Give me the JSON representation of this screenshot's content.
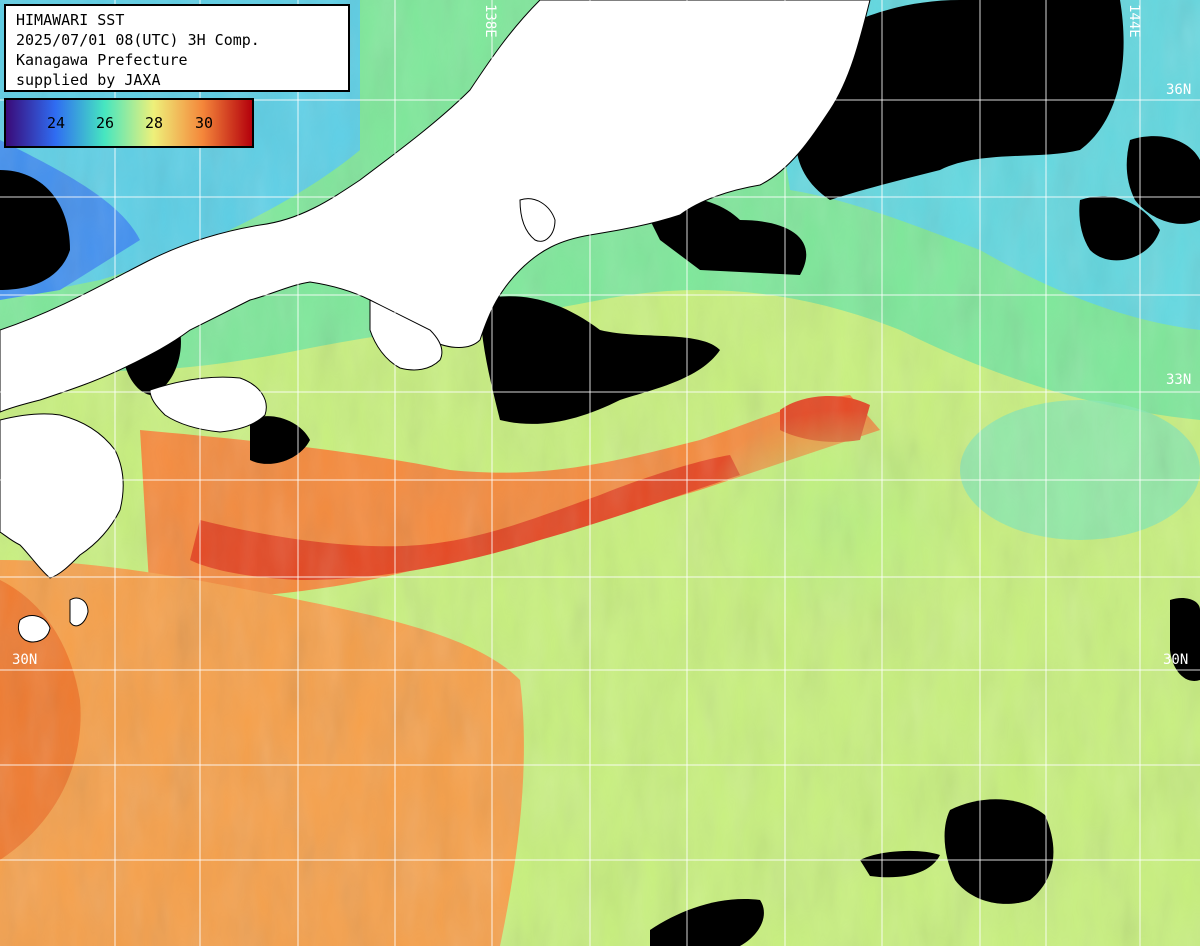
{
  "info": {
    "line1": "HIMAWARI SST",
    "line2": "2025/07/01 08(UTC) 3H Comp.",
    "line3": "Kanagawa Prefecture",
    "line4": "supplied by JAXA"
  },
  "legend": {
    "ticks": [
      "24",
      "26",
      "28",
      "30"
    ],
    "colors": [
      "#3a0a78",
      "#2f6cf2",
      "#46e6c0",
      "#eef07a",
      "#f4863a",
      "#b4000c"
    ]
  },
  "grid_labels": {
    "lat_36_right": "36N",
    "lat_33_right": "33N",
    "lat_30_left": "30N",
    "lat_30_right": "30N",
    "lon_138": "138E",
    "lon_144": "144E"
  },
  "colors": {
    "land": "#ffffff",
    "cloud": "#000000",
    "grid": "#ffffff"
  }
}
